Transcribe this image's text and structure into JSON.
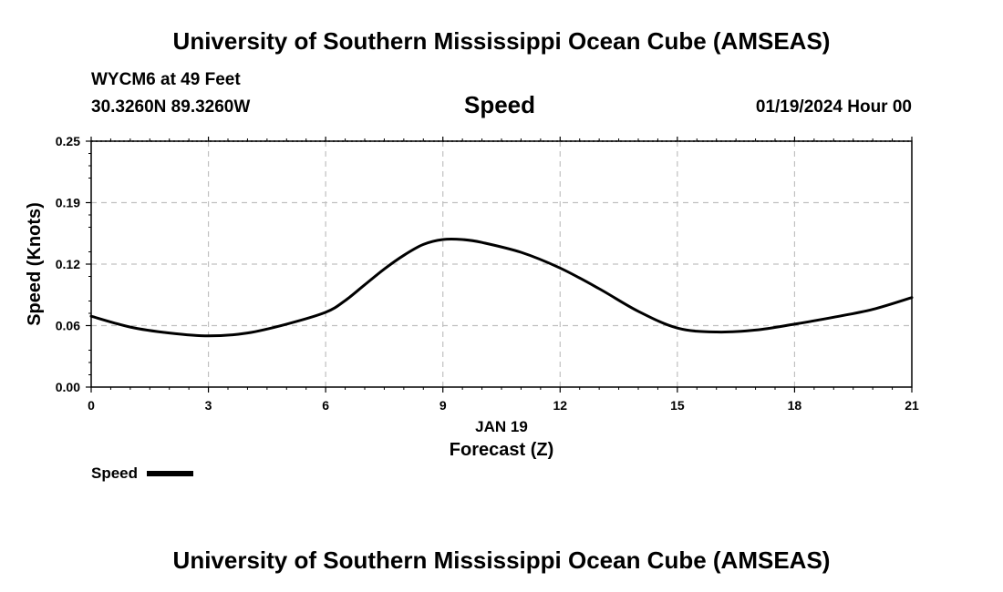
{
  "header": {
    "top_title": "University of Southern Mississippi Ocean Cube (AMSEAS)",
    "station": "WYCM6 at 49 Feet",
    "coords": "30.3260N  89.3260W",
    "variable": "Speed",
    "datetime": "01/19/2024 Hour 00"
  },
  "footer": {
    "bottom_title": "University of Southern Mississippi Ocean Cube (AMSEAS)"
  },
  "legend": {
    "label": "Speed"
  },
  "chart_data": {
    "type": "line",
    "title": "Speed",
    "xlabel": "Forecast (Z)",
    "xlabel_date": "JAN 19",
    "ylabel": "Speed (Knots)",
    "xlim": [
      0,
      21
    ],
    "ylim": [
      0,
      0.25
    ],
    "x_ticks": [
      0,
      3,
      6,
      9,
      12,
      15,
      18,
      21
    ],
    "x_tick_labels": [
      "0",
      "3",
      "6",
      "9",
      "12",
      "15",
      "18",
      "21"
    ],
    "y_ticks": [
      0.0,
      0.06,
      0.12,
      0.19,
      0.25
    ],
    "y_tick_labels": [
      "0.00",
      "0.06",
      "0.12",
      "0.19",
      "0.25"
    ],
    "grid": true,
    "legend_position": "bottom-left",
    "colors": {
      "line": "#000000",
      "grid": "#c0c0c0"
    },
    "series": [
      {
        "name": "Speed",
        "x": [
          0,
          1,
          2,
          3,
          4,
          5,
          6,
          6.5,
          7,
          7.5,
          8,
          8.5,
          9,
          9.5,
          10,
          11,
          12,
          13,
          14,
          15,
          16,
          17,
          18,
          19,
          20,
          21
        ],
        "y": [
          0.072,
          0.061,
          0.055,
          0.052,
          0.055,
          0.064,
          0.076,
          0.088,
          0.104,
          0.12,
          0.134,
          0.145,
          0.15,
          0.15,
          0.147,
          0.137,
          0.121,
          0.1,
          0.077,
          0.06,
          0.056,
          0.058,
          0.064,
          0.071,
          0.079,
          0.091
        ]
      }
    ]
  }
}
